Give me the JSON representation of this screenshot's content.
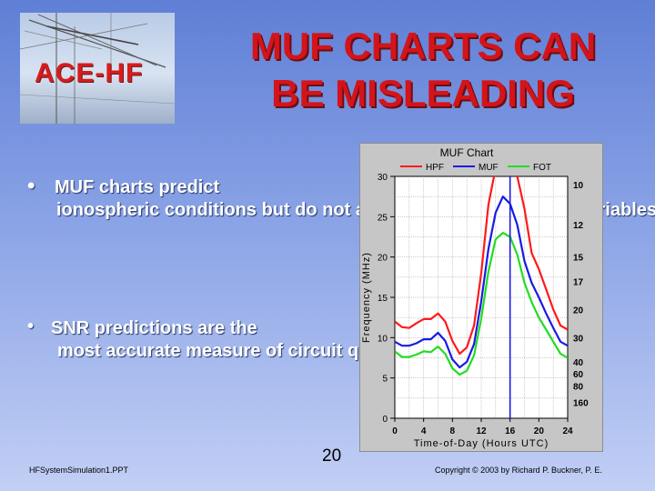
{
  "logo": {
    "text": "ACE-HF"
  },
  "title": "MUF CHARTS CAN BE MISLEADING",
  "bullets": [
    {
      "symbol": "•",
      "lines": [
        "MUF charts predict",
        "ionospheric conditions\nbut do not account for\nother system variables."
      ]
    },
    {
      "symbol": "•",
      "lines": [
        "SNR predictions are the",
        "most accurate measure\nof circuit quality."
      ]
    }
  ],
  "page_number": "20",
  "footer": {
    "left": "HFSystemSimulation1.PPT",
    "right": "Copyright © 2003 by Richard P. Buckner, P. E."
  },
  "chart_data": {
    "type": "line",
    "title": "MUF Chart",
    "xlabel": "Time-of-Day (Hours UTC)",
    "ylabel": "Frequency (MHz)",
    "xlim": [
      0,
      24
    ],
    "ylim": [
      0,
      30
    ],
    "xticks": [
      "0",
      "4",
      "8",
      "12",
      "16",
      "20",
      "24"
    ],
    "yticks": [
      "0",
      "5",
      "10",
      "15",
      "20",
      "25",
      "30"
    ],
    "right_axis_labels": [
      {
        "label": "10",
        "y": 29
      },
      {
        "label": "12",
        "y": 24
      },
      {
        "label": "15",
        "y": 20
      },
      {
        "label": "17",
        "y": 17
      },
      {
        "label": "20",
        "y": 13.5
      },
      {
        "label": "30",
        "y": 10
      },
      {
        "label": "40",
        "y": 7
      },
      {
        "label": "60",
        "y": 5.5
      },
      {
        "label": "80",
        "y": 4
      },
      {
        "label": "160",
        "y": 2
      }
    ],
    "marker_x": 16,
    "grid": true,
    "legend_position": "top",
    "series": [
      {
        "name": "HPF",
        "color": "#ff1a1a",
        "x": [
          0,
          1,
          2,
          3,
          4,
          5,
          6,
          7,
          8,
          9,
          10,
          11,
          12,
          13,
          14,
          15,
          16,
          17,
          18,
          19,
          20,
          21,
          22,
          23,
          24
        ],
        "y": [
          12.0,
          11.3,
          11.2,
          11.8,
          12.3,
          12.3,
          13.0,
          12.0,
          9.6,
          8.0,
          8.8,
          11.5,
          18.0,
          26.5,
          31.0,
          34.0,
          33.0,
          30.0,
          26.0,
          20.5,
          18.5,
          16.0,
          13.5,
          11.5,
          11.0
        ]
      },
      {
        "name": "MUF",
        "color": "#1a1ae6",
        "x": [
          0,
          1,
          2,
          3,
          4,
          5,
          6,
          7,
          8,
          9,
          10,
          11,
          12,
          13,
          14,
          15,
          16,
          17,
          18,
          19,
          20,
          21,
          22,
          23,
          24
        ],
        "y": [
          9.5,
          9.0,
          9.0,
          9.3,
          9.8,
          9.8,
          10.6,
          9.6,
          7.3,
          6.3,
          7.0,
          9.2,
          14.5,
          21.0,
          25.5,
          27.5,
          26.6,
          24.0,
          19.5,
          16.8,
          15.0,
          13.0,
          11.2,
          9.5,
          9.0
        ]
      },
      {
        "name": "FOT",
        "color": "#22dd22",
        "x": [
          0,
          1,
          2,
          3,
          4,
          5,
          6,
          7,
          8,
          9,
          10,
          11,
          12,
          13,
          14,
          15,
          16,
          17,
          18,
          19,
          20,
          21,
          22,
          23,
          24
        ],
        "y": [
          8.3,
          7.6,
          7.6,
          7.9,
          8.3,
          8.2,
          8.9,
          8.0,
          6.2,
          5.4,
          5.9,
          7.8,
          12.4,
          18.2,
          22.2,
          23.0,
          22.5,
          20.3,
          16.8,
          14.4,
          12.5,
          11.0,
          9.5,
          8.0,
          7.5
        ]
      }
    ]
  }
}
